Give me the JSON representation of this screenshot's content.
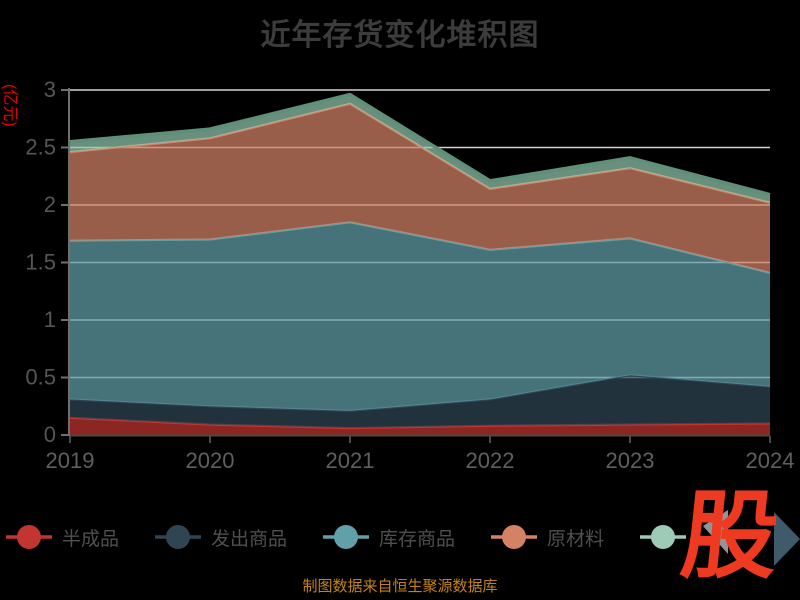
{
  "title": "近年存货变化堆积图",
  "caption": "制图数据来自恒生聚源数据库",
  "y_axis": {
    "name": "(亿元)",
    "name_color": "#e60000",
    "tick_labels": [
      "0",
      "0.5",
      "1",
      "1.5",
      "2",
      "2.5",
      "3"
    ]
  },
  "x_axis": {
    "labels": [
      "2019",
      "2020",
      "2021",
      "2022",
      "2023",
      "2024"
    ]
  },
  "legend": {
    "items": [
      {
        "label": "半成品",
        "color": "#c23531"
      },
      {
        "label": "发出商品",
        "color": "#2f4554"
      },
      {
        "label": "库存商品",
        "color": "#61a0a8"
      },
      {
        "label": "原材料",
        "color": "#d48265"
      },
      {
        "label": "",
        "color": "#9ecbb8"
      }
    ]
  },
  "logo": {
    "text": "股",
    "color": "#ee3a21"
  },
  "chart_data": {
    "type": "area",
    "stacked": true,
    "title": "近年存货变化堆积图",
    "ylabel": "(亿元)",
    "ylim": [
      0,
      3
    ],
    "y_tick_step": 0.5,
    "grid": true,
    "background": "#000000",
    "legend_position": "bottom",
    "x": [
      2019,
      2020,
      2021,
      2022,
      2023,
      2024
    ],
    "series": [
      {
        "name": "半成品",
        "color": "#c23531",
        "values": [
          0.15,
          0.09,
          0.06,
          0.08,
          0.09,
          0.1
        ]
      },
      {
        "name": "发出商品",
        "color": "#2f4554",
        "values": [
          0.16,
          0.16,
          0.15,
          0.23,
          0.43,
          0.32
        ]
      },
      {
        "name": "库存商品",
        "color": "#61a0a8",
        "values": [
          1.38,
          1.45,
          1.64,
          1.3,
          1.19,
          0.99
        ]
      },
      {
        "name": "原材料",
        "color": "#d48265",
        "values": [
          0.77,
          0.88,
          1.03,
          0.53,
          0.61,
          0.61
        ]
      },
      {
        "name": "",
        "color": "#91c7ae",
        "line_color": "#5f8f76",
        "values": [
          0.09,
          0.08,
          0.08,
          0.07,
          0.09,
          0.07
        ]
      }
    ],
    "cumulative_totals": [
      2.55,
      2.66,
      2.96,
      2.21,
      2.41,
      2.09
    ]
  }
}
